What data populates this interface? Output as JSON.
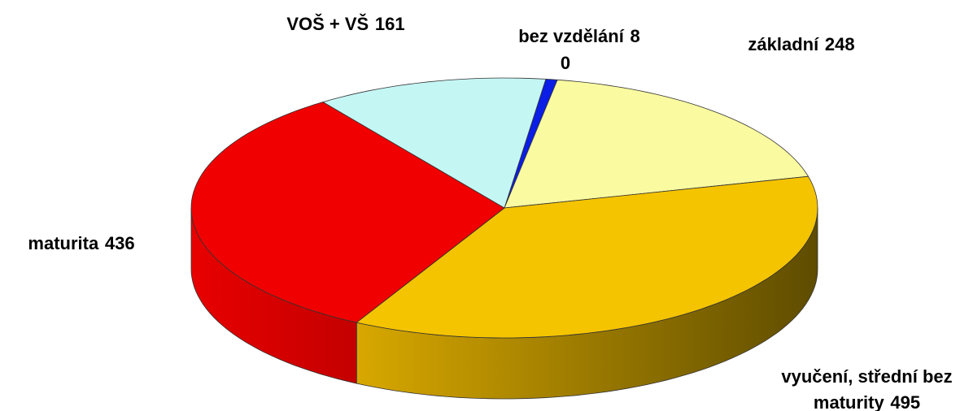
{
  "chart_data": {
    "type": "pie3d",
    "categories": [
      "bez vzdělání",
      "základní",
      "vyučení, střední bez maturity",
      "maturita",
      "VOŠ + VŠ"
    ],
    "values": [
      8,
      248,
      495,
      436,
      161
    ],
    "value_labels": [
      "8",
      "248",
      "495",
      "436",
      "161"
    ],
    "colors": [
      "#0a1ee6",
      "#fafaa0",
      "#f5c400",
      "#f00000",
      "#c4f6f4"
    ],
    "annotations": [
      "0"
    ]
  }
}
